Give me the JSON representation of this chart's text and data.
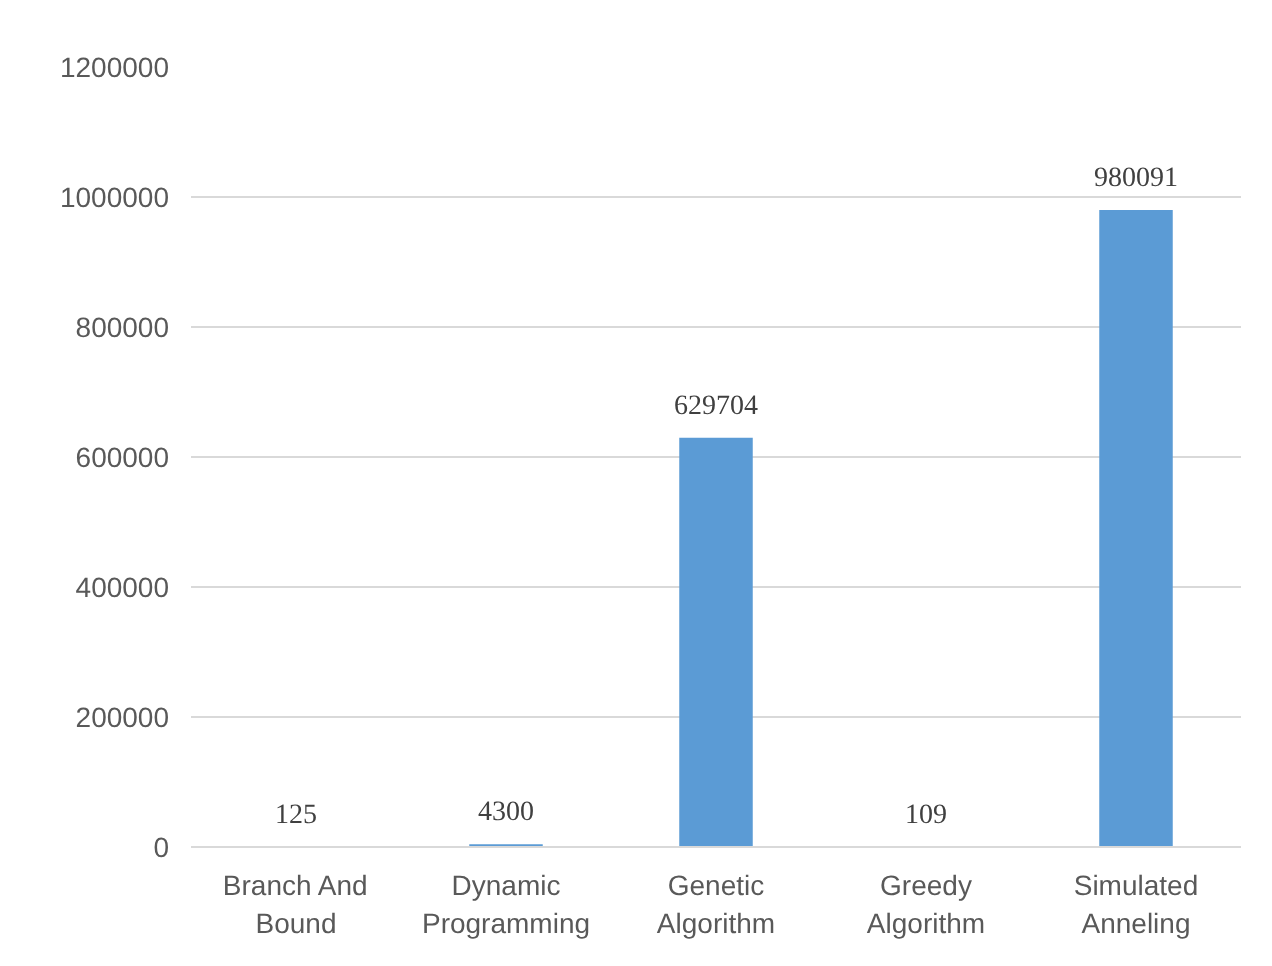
{
  "chart_data": {
    "type": "bar",
    "categories": [
      "Branch And Bound",
      "Dynamic Programming",
      "Genetic Algorithm",
      "Greedy Algorithm",
      "Simulated Anneling"
    ],
    "values": [
      125,
      4300,
      629704,
      109,
      980091
    ],
    "color": "#5b9bd5",
    "ylim": [
      0,
      1200000
    ],
    "yticks": [
      0,
      200000,
      400000,
      600000,
      800000,
      1000000,
      1200000
    ],
    "grid": "y",
    "data_labels": true
  }
}
